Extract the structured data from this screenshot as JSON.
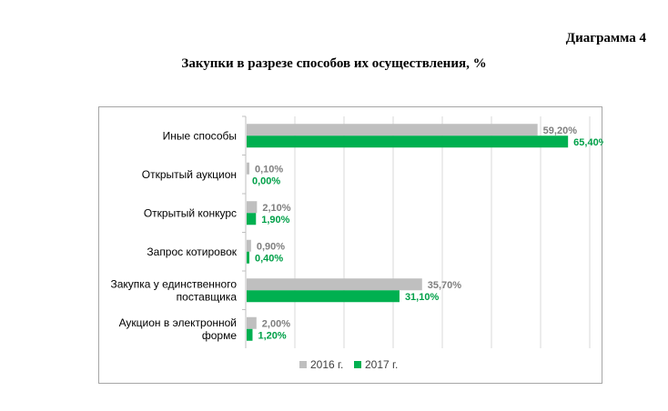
{
  "document": {
    "caption": "Диаграмма 4",
    "title": "Закупки в разрезе способов их осуществления, %"
  },
  "chart_data": {
    "type": "bar",
    "orientation": "horizontal",
    "categories": [
      [
        "Иные способы"
      ],
      [
        "Открытый аукцион"
      ],
      [
        "Открытый конкурс"
      ],
      [
        "Запрос котировок"
      ],
      [
        "Закупка у единственного",
        "поставщика"
      ],
      [
        "Аукцион в электронной",
        "форме"
      ]
    ],
    "series": [
      {
        "name": "2016 г.",
        "color": "#bfbfbf",
        "label_color": "#7f7f7f",
        "values": [
          59.2,
          0.1,
          2.1,
          0.9,
          35.7,
          2.0
        ],
        "labels": [
          "59,20%",
          "0,10%",
          "2,10%",
          "0,90%",
          "35,70%",
          "2,00%"
        ]
      },
      {
        "name": "2017 г.",
        "color": "#00b050",
        "label_color": "#00a048",
        "values": [
          65.4,
          0.0,
          1.9,
          0.4,
          31.1,
          1.2
        ],
        "labels": [
          "65,40%",
          "0,00%",
          "1,90%",
          "0,40%",
          "31,10%",
          "1,20%"
        ]
      }
    ],
    "xlim": [
      0,
      70
    ],
    "grid": true,
    "legend": "bottom"
  }
}
